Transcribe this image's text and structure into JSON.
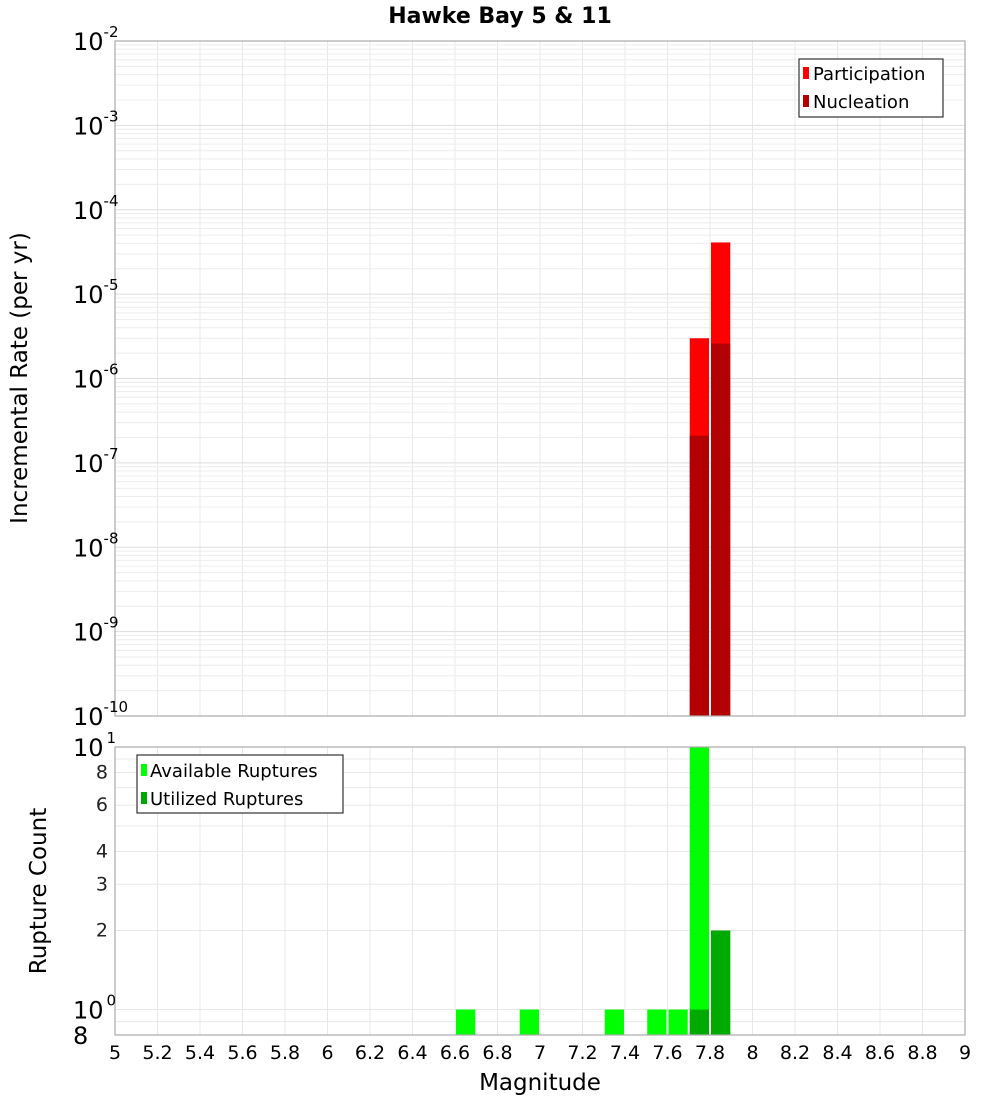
{
  "chart_data": [
    {
      "type": "bar",
      "panel": "top",
      "title": "Hawke Bay 5 & 11",
      "xlabel": "Magnitude",
      "ylabel": "Incremental Rate (per yr)",
      "yscale": "log",
      "xlim": [
        5,
        9
      ],
      "ylim": [
        1e-10,
        0.01
      ],
      "grid": true,
      "legend_position": "top-right",
      "ytick_labels": [
        {
          "base": "10",
          "exp": "-2"
        },
        {
          "base": "10",
          "exp": "-3"
        },
        {
          "base": "10",
          "exp": "-4"
        },
        {
          "base": "10",
          "exp": "-5"
        },
        {
          "base": "10",
          "exp": "-6"
        },
        {
          "base": "10",
          "exp": "-7"
        },
        {
          "base": "10",
          "exp": "-8"
        },
        {
          "base": "10",
          "exp": "-9"
        },
        {
          "base": "10",
          "exp": "-10"
        }
      ],
      "bin_width": 0.1,
      "series": [
        {
          "name": "Participation",
          "color": "#ff0000",
          "bins": [
            {
              "x0": 7.7,
              "x1": 7.8,
              "value": 3e-06
            },
            {
              "x0": 7.8,
              "x1": 7.9,
              "value": 4.1e-05
            }
          ]
        },
        {
          "name": "Nucleation",
          "color": "#b30000",
          "bins": [
            {
              "x0": 7.7,
              "x1": 7.8,
              "value": 2.1e-07
            },
            {
              "x0": 7.8,
              "x1": 7.9,
              "value": 2.6e-06
            }
          ]
        }
      ]
    },
    {
      "type": "bar",
      "panel": "bottom",
      "xlabel": "Magnitude",
      "ylabel": "Rupture Count",
      "yscale": "log",
      "xlim": [
        5,
        9
      ],
      "ylim": [
        0.8,
        10
      ],
      "grid": true,
      "legend_position": "top-left",
      "xtick_labels": [
        "5",
        "5.2",
        "5.4",
        "5.6",
        "5.8",
        "6",
        "6.2",
        "6.4",
        "6.6",
        "6.8",
        "7",
        "7.2",
        "7.4",
        "7.6",
        "7.8",
        "8",
        "8.2",
        "8.4",
        "8.6",
        "8.8",
        "9"
      ],
      "ytick_minor": [
        {
          "value": 8,
          "label": "8"
        },
        {
          "value": 6,
          "label": "6"
        },
        {
          "value": 4,
          "label": "4"
        },
        {
          "value": 3,
          "label": "3"
        },
        {
          "value": 2,
          "label": "2"
        }
      ],
      "ytick_major": [
        {
          "value": 10,
          "base": "10",
          "exp": "1"
        },
        {
          "value": 1,
          "base": "10",
          "exp": "0"
        },
        {
          "value": 0.8,
          "base": "8",
          "exp": ""
        }
      ],
      "bin_width": 0.1,
      "series": [
        {
          "name": "Available Ruptures",
          "color": "#00ff00",
          "bins": [
            {
              "x0": 6.6,
              "x1": 6.7,
              "value": 1
            },
            {
              "x0": 6.9,
              "x1": 7.0,
              "value": 1
            },
            {
              "x0": 7.3,
              "x1": 7.4,
              "value": 1
            },
            {
              "x0": 7.5,
              "x1": 7.6,
              "value": 1
            },
            {
              "x0": 7.6,
              "x1": 7.7,
              "value": 1
            },
            {
              "x0": 7.7,
              "x1": 7.8,
              "value": 10
            },
            {
              "x0": 7.8,
              "x1": 7.9,
              "value": 2
            }
          ]
        },
        {
          "name": "Utilized Ruptures",
          "color": "#00aa00",
          "bins": [
            {
              "x0": 7.7,
              "x1": 7.8,
              "value": 1
            },
            {
              "x0": 7.8,
              "x1": 7.9,
              "value": 2
            }
          ]
        }
      ]
    }
  ],
  "text": {
    "title": "Hawke Bay 5 & 11",
    "top_ylabel": "Incremental Rate (per yr)",
    "bottom_ylabel": "Rupture Count",
    "xlabel": "Magnitude",
    "legend_top": [
      "Participation",
      "Nucleation"
    ],
    "legend_bottom": [
      "Available Ruptures",
      "Utilized Ruptures"
    ]
  }
}
